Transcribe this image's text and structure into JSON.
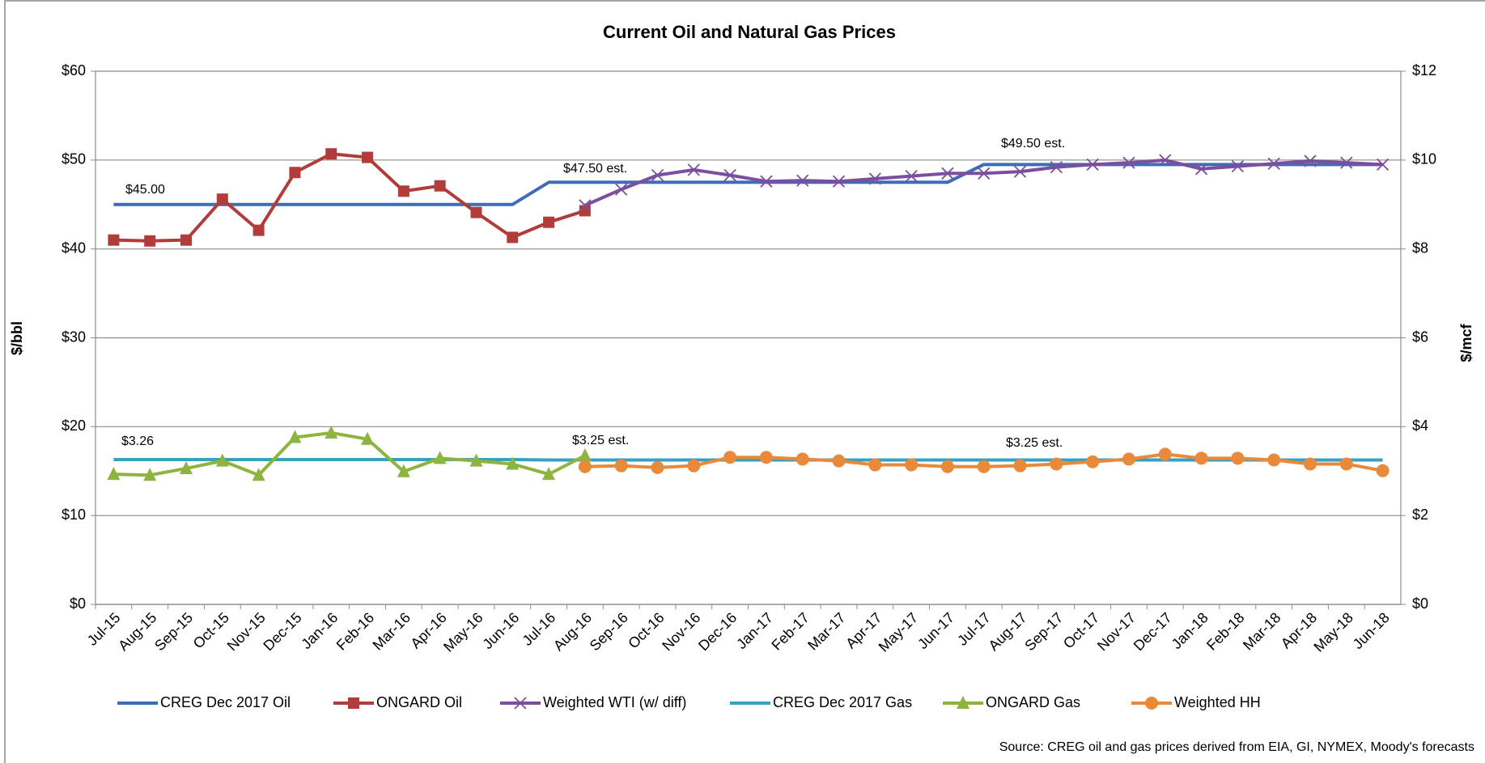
{
  "chart_data": {
    "type": "line",
    "title": "Current Oil and Natural Gas Prices",
    "y_label": "$/bbl",
    "y2_label": "$/mcf",
    "source": "Source: CREG oil and gas prices derived from EIA, GI, NYMEX, Moody's forecasts",
    "categories": [
      "Jul-15",
      "Aug-15",
      "Sep-15",
      "Oct-15",
      "Nov-15",
      "Dec-15",
      "Jan-16",
      "Feb-16",
      "Mar-16",
      "Apr-16",
      "May-16",
      "Jun-16",
      "Jul-16",
      "Aug-16",
      "Sep-16",
      "Oct-16",
      "Nov-16",
      "Dec-16",
      "Jan-17",
      "Feb-17",
      "Mar-17",
      "Apr-17",
      "May-17",
      "Jun-17",
      "Jul-17",
      "Aug-17",
      "Sep-17",
      "Oct-17",
      "Nov-17",
      "Dec-17",
      "Jan-18",
      "Feb-18",
      "Mar-18",
      "Apr-18",
      "May-18",
      "Jun-18"
    ],
    "ylim": [
      0,
      60
    ],
    "yticks": [
      {
        "value": 0,
        "label": "$0"
      },
      {
        "value": 10,
        "label": "$10"
      },
      {
        "value": 20,
        "label": "$20"
      },
      {
        "value": 30,
        "label": "$30"
      },
      {
        "value": 40,
        "label": "$40"
      },
      {
        "value": 50,
        "label": "$50"
      },
      {
        "value": 60,
        "label": "$60"
      }
    ],
    "y2lim": [
      0,
      12
    ],
    "y2ticks": [
      {
        "value": 0,
        "label": "$0"
      },
      {
        "value": 2,
        "label": "$2"
      },
      {
        "value": 4,
        "label": "$4"
      },
      {
        "value": 6,
        "label": "$6"
      },
      {
        "value": 8,
        "label": "$8"
      },
      {
        "value": 10,
        "label": "$10"
      },
      {
        "value": 12,
        "label": "$12"
      }
    ],
    "grid": true,
    "legend": "bottom",
    "series": [
      {
        "name": "CREG Dec 2017 Oil",
        "color": "#3e6db5",
        "marker": "none",
        "values": [
          45,
          45,
          45,
          45,
          45,
          45,
          45,
          45,
          45,
          45,
          45,
          45,
          47.5,
          47.5,
          47.5,
          47.5,
          47.5,
          47.5,
          47.5,
          47.5,
          47.5,
          47.5,
          47.5,
          47.5,
          49.5,
          49.5,
          49.5,
          49.5,
          49.5,
          49.5,
          49.5,
          49.5,
          49.5,
          49.5,
          49.5,
          49.5
        ]
      },
      {
        "name": "ONGARD Oil",
        "color": "#b13d3a",
        "marker": "square",
        "values": [
          41.0,
          40.9,
          41.0,
          45.6,
          42.1,
          48.6,
          50.7,
          50.3,
          46.5,
          47.1,
          44.1,
          41.3,
          43.0,
          44.3,
          null,
          null,
          null,
          null,
          null,
          null,
          null,
          null,
          null,
          null,
          null,
          null,
          null,
          null,
          null,
          null,
          null,
          null,
          null,
          null,
          null,
          null
        ]
      },
      {
        "name": "Weighted WTI (w/ diff)",
        "color": "#7b4f9d",
        "marker": "x",
        "values": [
          null,
          null,
          null,
          null,
          null,
          null,
          null,
          null,
          null,
          null,
          null,
          null,
          null,
          44.9,
          46.7,
          48.3,
          48.9,
          48.3,
          47.6,
          47.7,
          47.6,
          47.9,
          48.2,
          48.5,
          48.5,
          48.7,
          49.2,
          49.5,
          49.7,
          50.0,
          49.0,
          49.3,
          49.6,
          49.9,
          49.7,
          49.5
        ]
      },
      {
        "name": "CREG Dec 2017 Gas",
        "color": "#3aa0bf",
        "marker": "none",
        "axis": "y2",
        "values": [
          3.26,
          3.26,
          3.26,
          3.26,
          3.26,
          3.26,
          3.26,
          3.26,
          3.26,
          3.26,
          3.26,
          3.26,
          3.25,
          3.25,
          3.25,
          3.25,
          3.25,
          3.25,
          3.25,
          3.25,
          3.25,
          3.25,
          3.25,
          3.25,
          3.25,
          3.25,
          3.25,
          3.25,
          3.25,
          3.25,
          3.25,
          3.25,
          3.25,
          3.25,
          3.25,
          3.25
        ]
      },
      {
        "name": "ONGARD Gas",
        "color": "#8db43e",
        "marker": "triangle",
        "axis": "y2",
        "values": [
          2.93,
          2.91,
          3.06,
          3.23,
          2.91,
          3.76,
          3.86,
          3.72,
          2.99,
          3.29,
          3.23,
          3.16,
          2.93,
          3.35,
          null,
          null,
          null,
          null,
          null,
          null,
          null,
          null,
          null,
          null,
          null,
          null,
          null,
          null,
          null,
          null,
          null,
          null,
          null,
          null,
          null,
          null
        ]
      },
      {
        "name": "Weighted HH",
        "color": "#e88a3a",
        "marker": "circle",
        "axis": "y2",
        "values": [
          null,
          null,
          null,
          null,
          null,
          null,
          null,
          null,
          null,
          null,
          null,
          null,
          null,
          3.1,
          3.12,
          3.08,
          3.12,
          3.31,
          3.31,
          3.27,
          3.23,
          3.14,
          3.14,
          3.1,
          3.1,
          3.12,
          3.16,
          3.21,
          3.27,
          3.38,
          3.29,
          3.29,
          3.25,
          3.16,
          3.16,
          3.01
        ]
      }
    ],
    "annotations": [
      "$45.00",
      "$47.50 est.",
      "$49.50 est.",
      "$3.26",
      "$3.25 est.",
      "$3.25 est."
    ]
  }
}
